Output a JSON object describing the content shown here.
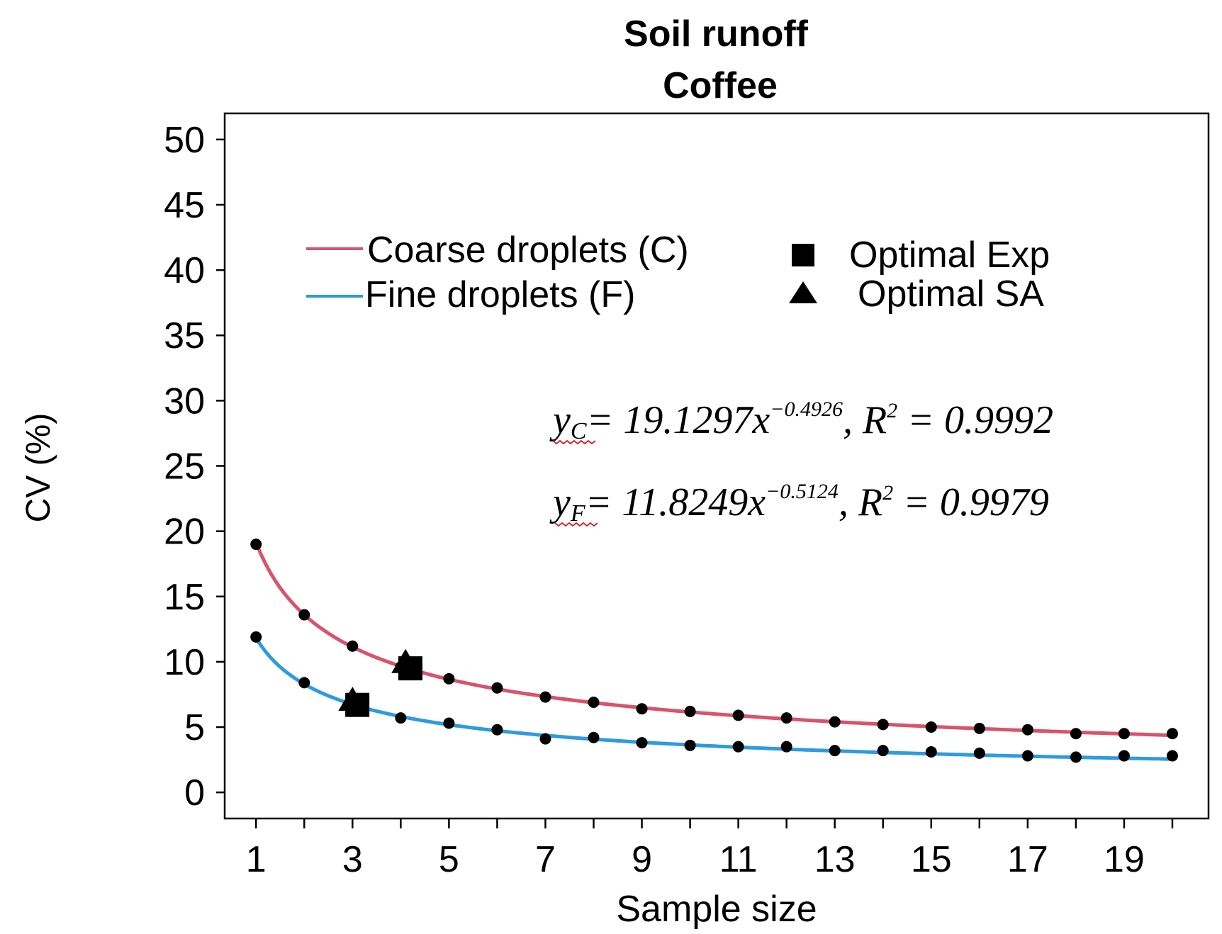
{
  "chart_data": {
    "type": "line",
    "title": "Soil runoff",
    "subtitle": "Coffee",
    "xlabel": "Sample size",
    "ylabel": "CV (%)",
    "xlim": [
      0.35,
      20.75
    ],
    "ylim": [
      -2,
      52
    ],
    "x_ticks": [
      1,
      3,
      5,
      7,
      9,
      11,
      13,
      15,
      17,
      19
    ],
    "y_ticks": [
      0,
      5,
      10,
      15,
      20,
      25,
      30,
      35,
      40,
      45,
      50
    ],
    "grid": false,
    "legend_position": "top",
    "series": [
      {
        "name": "Coarse droplets (C)",
        "color": "#d9536b",
        "x": [
          1,
          2,
          3,
          4,
          5,
          6,
          7,
          8,
          9,
          10,
          11,
          12,
          13,
          14,
          15,
          16,
          17,
          18,
          19,
          20
        ],
        "y": [
          19.0,
          13.6,
          11.2,
          9.6,
          8.7,
          8.0,
          7.3,
          6.9,
          6.4,
          6.2,
          5.9,
          5.7,
          5.4,
          5.2,
          5.0,
          4.9,
          4.8,
          4.5,
          4.5,
          4.5
        ],
        "fit": {
          "a": 19.1297,
          "b": -0.4926
        }
      },
      {
        "name": "Fine droplets (F)",
        "color": "#2e9be0",
        "x": [
          1,
          2,
          3,
          4,
          5,
          6,
          7,
          8,
          9,
          10,
          11,
          12,
          13,
          14,
          15,
          16,
          17,
          18,
          19,
          20
        ],
        "y": [
          11.9,
          8.4,
          6.9,
          5.7,
          5.3,
          4.8,
          4.1,
          4.2,
          3.8,
          3.6,
          3.5,
          3.5,
          3.2,
          3.2,
          3.1,
          3.0,
          2.8,
          2.7,
          2.8,
          2.8
        ],
        "fit": {
          "a": 11.8249,
          "b": -0.5124
        }
      }
    ],
    "markers": [
      {
        "name": "Optimal Exp",
        "shape": "square",
        "points": [
          {
            "x": 4.2,
            "y": 9.5
          },
          {
            "x": 3.1,
            "y": 6.7
          }
        ]
      },
      {
        "name": "Optimal SA",
        "shape": "triangle",
        "points": [
          {
            "x": 4.1,
            "y": 9.9
          },
          {
            "x": 3.0,
            "y": 7.0
          }
        ]
      }
    ],
    "annotations": [
      {
        "lhs": "y",
        "sub": "C",
        "eq": "= 19.1297x",
        "exp": "−0.4926",
        "tail": ", R",
        "sq": "2",
        "r2": " = 0.9992"
      },
      {
        "lhs": "y",
        "sub": "F",
        "eq": "= 11.8249x",
        "exp": "−0.5124",
        "tail": ", R",
        "sq": "2",
        "r2": " = 0.9979"
      }
    ]
  }
}
